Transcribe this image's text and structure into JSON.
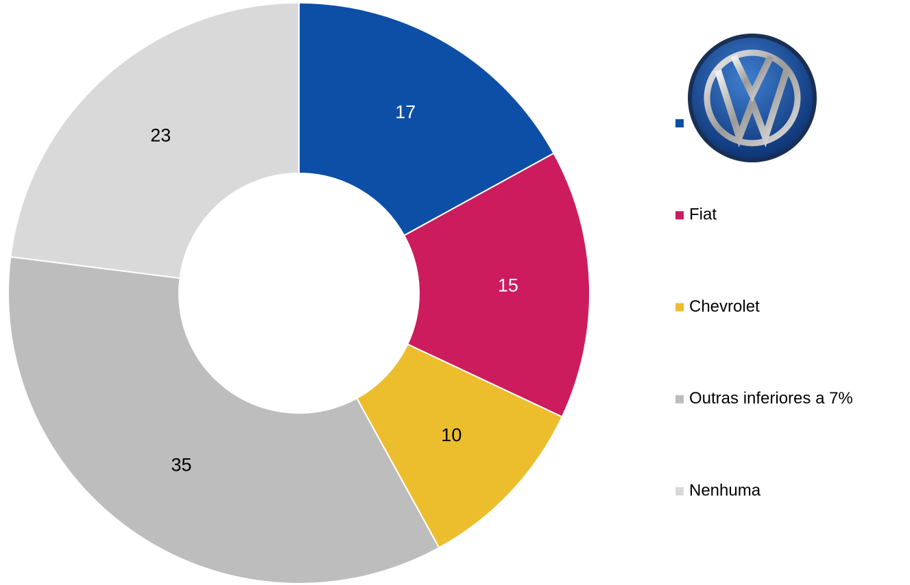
{
  "chart_data": {
    "type": "donut",
    "categories": [
      null,
      "Fiat",
      "Chevrolet",
      "Outras inferiores a 7%",
      "Nenhuma"
    ],
    "values": [
      17,
      15,
      10,
      35,
      23
    ],
    "colors": [
      "#0d4ea6",
      "#cc1c5e",
      "#ecbe2e",
      "#bdbdbd",
      "#d9d9d9"
    ],
    "legend": "right"
  }
}
